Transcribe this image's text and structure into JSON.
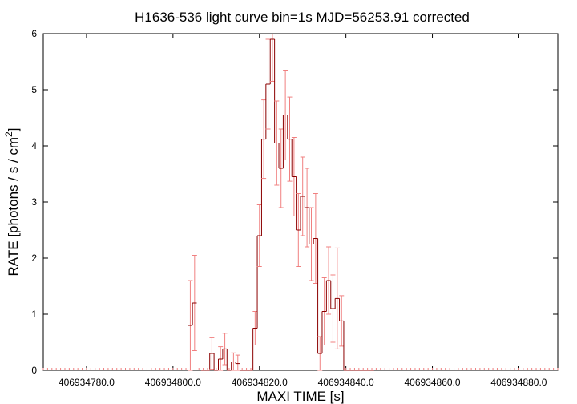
{
  "chart_data": {
    "type": "line",
    "title": "H1636-536 light curve bin=1s MJD=56253.91 corrected",
    "xlabel": "MAXI TIME [s]",
    "ylabel": "RATE [photons / s / cm",
    "ylabel_sup": "2",
    "ylabel_suffix": "]",
    "xlim": [
      406934770,
      406934889
    ],
    "ylim": [
      0,
      6
    ],
    "xticks": [
      406934780,
      406934800,
      406934820,
      406934840,
      406934860,
      406934880
    ],
    "xtick_labels": [
      "406934780.0",
      "406934800.0",
      "406934820.0",
      "406934840.0",
      "406934860.0",
      "406934880.0"
    ],
    "yticks": [
      0,
      1,
      2,
      3,
      4,
      5,
      6
    ],
    "ytick_labels": [
      "0",
      "1",
      "2",
      "3",
      "4",
      "5",
      "6"
    ],
    "grid": false,
    "line_color": "#8b0000",
    "errorbar_color": "#f08080",
    "series": [
      {
        "x": [
          406934804,
          406934805,
          406934807,
          406934808,
          406934809,
          406934810,
          406934811,
          406934812,
          406934813,
          406934814,
          406934815,
          406934816,
          406934817,
          406934818,
          406934819,
          406934820,
          406934821,
          406934822,
          406934823,
          406934824,
          406934825,
          406934826,
          406934827,
          406934828,
          406934829,
          406934830,
          406934831,
          406934832,
          406934833,
          406934834,
          406934835,
          406934836,
          406934837,
          406934838,
          406934839,
          406934840,
          406934841,
          406934842,
          406934843,
          406934844,
          406934845,
          406934846
        ],
        "y": [
          0.8,
          1.2,
          0.0,
          0.0,
          0.3,
          0.0,
          0.2,
          0.38,
          0.0,
          0.15,
          0.12,
          0.0,
          0.0,
          0.0,
          0.75,
          2.4,
          4.12,
          5.1,
          5.9,
          4.05,
          3.6,
          4.55,
          4.12,
          3.45,
          2.5,
          3.1,
          2.9,
          2.25,
          2.35,
          0.3,
          1.05,
          1.6,
          1.1,
          1.28,
          0.88,
          0.0,
          0.0,
          0.0,
          0.0,
          0.0,
          0.0,
          0.0
        ],
        "err": [
          0.8,
          0.85,
          0.0,
          0.0,
          0.28,
          0.0,
          0.22,
          0.28,
          0.0,
          0.16,
          0.15,
          0.0,
          0.0,
          0.0,
          0.3,
          0.55,
          0.7,
          0.8,
          0.75,
          0.75,
          0.7,
          0.8,
          0.75,
          0.7,
          0.65,
          0.7,
          0.7,
          0.65,
          0.8,
          0.3,
          0.6,
          0.6,
          0.6,
          0.9,
          0.45,
          0.0,
          0.0,
          0.0,
          0.0,
          0.0,
          0.0,
          0.0
        ]
      }
    ],
    "baseline_markers_xrange": [
      406934770,
      406934889
    ]
  }
}
